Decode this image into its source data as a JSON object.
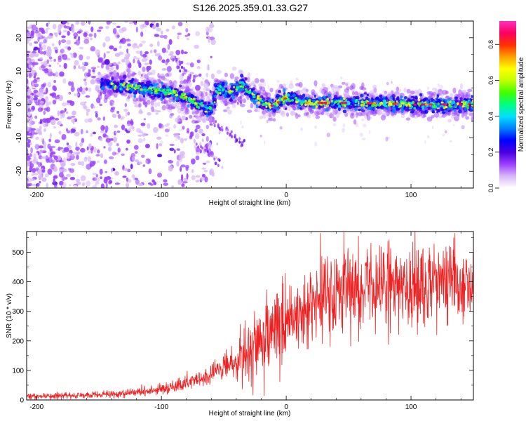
{
  "figure_title": "S126.2025.359.01.33.G27",
  "chart_data": [
    {
      "type": "heatmap",
      "title": "S126.2025.359.01.33.G27",
      "xlabel": "Height of straight line (km)",
      "ylabel": "Frequency (Hz)",
      "xlim": [
        -208,
        150
      ],
      "ylim": [
        -25,
        25
      ],
      "xticks": [
        -200,
        -100,
        0,
        100
      ],
      "yticks": [
        -20,
        -10,
        0,
        10,
        20
      ],
      "xtick_labels": [
        "-200",
        "-100",
        "0",
        "100"
      ],
      "ytick_labels": [
        "-20",
        "-10",
        "0",
        "10",
        "20"
      ],
      "ridge": {
        "description": "dominant frequency ridge (Hz) vs height (km)",
        "x": [
          -145,
          -130,
          -120,
          -110,
          -100,
          -90,
          -80,
          -70,
          -60,
          -55,
          -50,
          -45,
          -40,
          -35,
          -30,
          -25,
          -20,
          -15,
          -10,
          -5,
          0,
          10,
          20,
          40,
          60,
          80,
          100,
          120,
          140,
          150
        ],
        "y": [
          6,
          5.5,
          5,
          4.5,
          4,
          3.5,
          2,
          0,
          -1.5,
          5,
          4,
          3.5,
          5,
          6,
          4,
          2,
          1,
          0,
          -0.5,
          1,
          2,
          1,
          0.5,
          0.5,
          0.5,
          0.3,
          0,
          0,
          0,
          0.2
        ]
      },
      "colorbar": {
        "label": "Normalized spectral amplitude",
        "range": [
          0,
          0.93
        ],
        "ticks": [
          0.0,
          0.2,
          0.4,
          0.6,
          0.8
        ],
        "tick_labels": [
          "0.0",
          "0.2",
          "0.4",
          "0.6",
          "0.8"
        ],
        "colors": [
          "#ffffff",
          "#d8b8f8",
          "#9a40ff",
          "#4a00e0",
          "#0000ff",
          "#0080ff",
          "#00e0ff",
          "#00ff80",
          "#40ff00",
          "#c0ff00",
          "#ffff00",
          "#ffa000",
          "#ff3000",
          "#ff0060",
          "#ff30c0"
        ]
      }
    },
    {
      "type": "line",
      "xlabel": "Height of straight line (km)",
      "ylabel": "SNR (10 * v/v)",
      "xlim": [
        -208,
        150
      ],
      "ylim": [
        0,
        570
      ],
      "xticks": [
        -200,
        -100,
        0,
        100
      ],
      "yticks": [
        0,
        100,
        200,
        300,
        400,
        500
      ],
      "xtick_labels": [
        "-200",
        "-100",
        "0",
        "100"
      ],
      "ytick_labels": [
        "0",
        "100",
        "200",
        "300",
        "400",
        "500"
      ],
      "color": "#ee2222",
      "trend": {
        "x": [
          -208,
          -180,
          -150,
          -120,
          -100,
          -80,
          -60,
          -40,
          -30,
          -20,
          -10,
          0,
          10,
          20,
          30,
          40,
          60,
          80,
          100,
          120,
          140,
          150
        ],
        "y": [
          12,
          14,
          17,
          25,
          35,
          55,
          85,
          130,
          165,
          195,
          230,
          255,
          285,
          320,
          350,
          370,
          375,
          380,
          385,
          390,
          385,
          380
        ]
      }
    }
  ]
}
